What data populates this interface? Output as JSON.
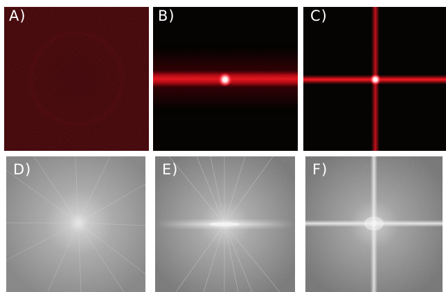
{
  "panels": [
    {
      "id": "A",
      "label": "A)",
      "kind": "diffraction-pattern",
      "pattern": "diffuse",
      "color": "#3a0606"
    },
    {
      "id": "B",
      "label": "B)",
      "kind": "diffraction-pattern",
      "pattern": "horizontal-streak",
      "color": "#e0101a"
    },
    {
      "id": "C",
      "label": "C)",
      "kind": "diffraction-pattern",
      "pattern": "cross",
      "color": "#e0101a"
    },
    {
      "id": "D",
      "label": "D)",
      "kind": "fourier-spectrum",
      "pattern": "radial",
      "color": "#8c8c8c"
    },
    {
      "id": "E",
      "label": "E)",
      "kind": "fourier-spectrum",
      "pattern": "horizontal-streak",
      "color": "#8c8c8c"
    },
    {
      "id": "F",
      "label": "F)",
      "kind": "fourier-spectrum",
      "pattern": "cross",
      "color": "#8c8c8c"
    }
  ]
}
